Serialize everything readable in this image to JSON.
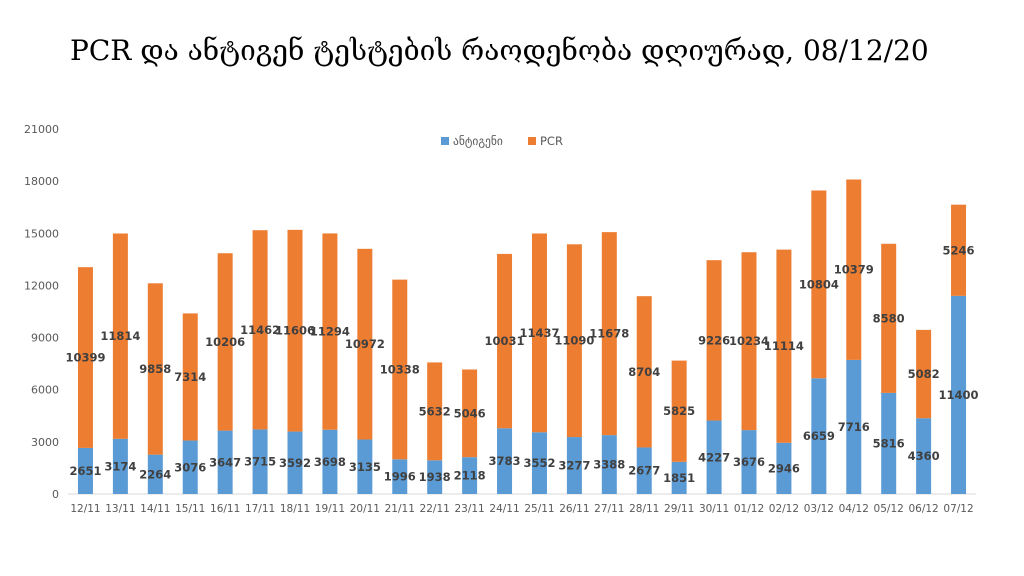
{
  "title": "PCR და ანტიგენ ტესტების რაოდენობა დღიურად, 08/12/20",
  "chart_data": {
    "type": "bar",
    "stacked": true,
    "categories": [
      "12/11",
      "13/11",
      "14/11",
      "15/11",
      "16/11",
      "17/11",
      "18/11",
      "19/11",
      "20/11",
      "21/11",
      "22/11",
      "23/11",
      "24/11",
      "25/11",
      "26/11",
      "27/11",
      "28/11",
      "29/11",
      "30/11",
      "01/12",
      "02/12",
      "03/12",
      "04/12",
      "05/12",
      "06/12",
      "07/12"
    ],
    "series": [
      {
        "name": "ანტიგენი",
        "color": "#5B9BD5",
        "values": [
          2651,
          3174,
          2264,
          3076,
          3647,
          3715,
          3592,
          3698,
          3135,
          1996,
          1938,
          2118,
          3783,
          3552,
          3277,
          3388,
          2677,
          1851,
          4227,
          3676,
          2946,
          6659,
          7716,
          5816,
          4360,
          11400
        ]
      },
      {
        "name": "PCR",
        "color": "#ED7D31",
        "values": [
          10399,
          11814,
          9858,
          7314,
          10206,
          11462,
          11606,
          11294,
          10972,
          10338,
          5632,
          5046,
          10031,
          11437,
          11090,
          11678,
          8704,
          5825,
          9226,
          10234,
          11114,
          10804,
          10379,
          8580,
          5082,
          5246
        ]
      }
    ],
    "ylim": [
      0,
      21000
    ],
    "yticks": [
      0,
      3000,
      6000,
      9000,
      12000,
      15000,
      18000,
      21000
    ],
    "legend": "top-center",
    "grid": false
  }
}
